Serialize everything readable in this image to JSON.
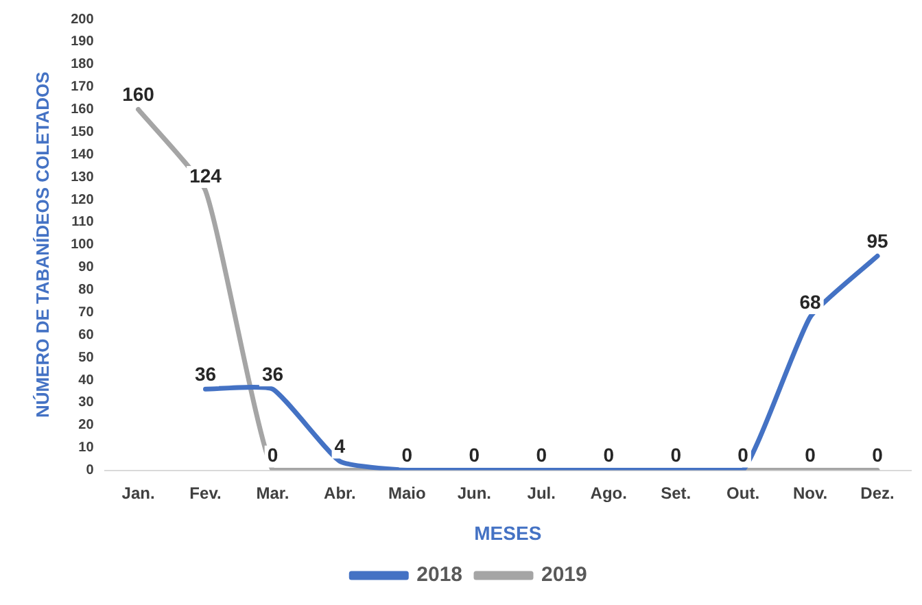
{
  "chart_data": {
    "type": "line",
    "xlabel": "MESES",
    "ylabel": "NÚMERO DE TABANÍDEOS COLETADOS",
    "categories": [
      "Jan.",
      "Fev.",
      "Mar.",
      "Abr.",
      "Maio",
      "Jun.",
      "Jul.",
      "Ago.",
      "Set.",
      "Out.",
      "Nov.",
      "Dez."
    ],
    "series": [
      {
        "name": "2018",
        "color": "#4472c4",
        "values": [
          null,
          36,
          36,
          4,
          0,
          0,
          0,
          0,
          0,
          0,
          68,
          95
        ],
        "value_labels": [
          null,
          "36",
          "36",
          "4",
          null,
          null,
          null,
          null,
          null,
          null,
          "68",
          "95"
        ]
      },
      {
        "name": "2019",
        "color": "#a5a5a5",
        "values": [
          160,
          124,
          0,
          0,
          0,
          0,
          0,
          0,
          0,
          0,
          0,
          0
        ],
        "value_labels": [
          "160",
          "124",
          "0",
          null,
          "0",
          "0",
          "0",
          "0",
          "0",
          "0",
          "0",
          "0"
        ]
      }
    ],
    "ylim": [
      0,
      200
    ],
    "yticks": [
      0,
      10,
      20,
      30,
      40,
      50,
      60,
      70,
      80,
      90,
      100,
      110,
      120,
      130,
      140,
      150,
      160,
      170,
      180,
      190,
      200
    ],
    "grid": false,
    "legend": "bottom",
    "marker": "none",
    "line_style": "solid"
  }
}
